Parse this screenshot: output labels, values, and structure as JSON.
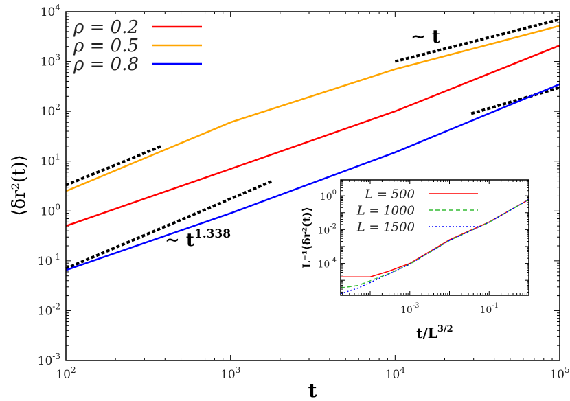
{
  "chart_data": [
    {
      "type": "line",
      "xscale": "log",
      "yscale": "log",
      "xlim": [
        100,
        100000
      ],
      "ylim": [
        0.001,
        10000
      ],
      "xlabel": "t",
      "ylabel": "⟨δr²(t)⟩",
      "xticks": [
        {
          "base": "10",
          "exp": "2",
          "v": 100
        },
        {
          "base": "10",
          "exp": "3",
          "v": 1000
        },
        {
          "base": "10",
          "exp": "4",
          "v": 10000
        },
        {
          "base": "10",
          "exp": "5",
          "v": 100000
        }
      ],
      "yticks": [
        {
          "base": "10",
          "exp": "-3",
          "v": 0.001
        },
        {
          "base": "10",
          "exp": "-2",
          "v": 0.01
        },
        {
          "base": "10",
          "exp": "-1",
          "v": 0.1
        },
        {
          "base": "10",
          "exp": "0",
          "v": 1
        },
        {
          "base": "10",
          "exp": "1",
          "v": 10
        },
        {
          "base": "10",
          "exp": "2",
          "v": 100
        },
        {
          "base": "10",
          "exp": "3",
          "v": 1000
        },
        {
          "base": "10",
          "exp": "4",
          "v": 10000
        }
      ],
      "legend_position": "top-left",
      "series": [
        {
          "name": "ρ = 0.2",
          "color": "#ff0000",
          "x": [
            100,
            1000,
            10000,
            100000
          ],
          "y": [
            0.5,
            7,
            100,
            2100
          ]
        },
        {
          "name": "ρ = 0.5",
          "color": "#ffa500",
          "x": [
            100,
            1000,
            10000,
            100000
          ],
          "y": [
            2.5,
            60,
            700,
            5200
          ]
        },
        {
          "name": "ρ = 0.8",
          "color": "#0000ff",
          "x": [
            100,
            1000,
            10000,
            100000
          ],
          "y": [
            0.065,
            0.9,
            15,
            350
          ]
        }
      ],
      "reference_lines": [
        {
          "style": "dashed",
          "color": "#000000",
          "x": [
            100,
            1800
          ],
          "y": [
            0.07,
            4
          ]
        },
        {
          "style": "dashed",
          "color": "#000000",
          "x": [
            100,
            380
          ],
          "y": [
            3.3,
            20
          ]
        },
        {
          "style": "dashed",
          "color": "#000000",
          "x": [
            10000,
            100000
          ],
          "y": [
            1000,
            7000
          ]
        },
        {
          "style": "dashed",
          "color": "#000000",
          "x": [
            29000,
            100000
          ],
          "y": [
            90,
            300
          ]
        }
      ],
      "annotations": [
        {
          "text": "∼ t",
          "sup": ""
        },
        {
          "text": "∼ t",
          "sup": "1.338"
        }
      ]
    },
    {
      "type": "line",
      "inset": true,
      "xscale": "log",
      "yscale": "log",
      "xlim": [
        1.8e-05,
        1
      ],
      "ylim": [
        1.3e-06,
        8.7
      ],
      "xlabel": "t/L",
      "xlabel_sup": "3/2",
      "ylabel": "L⁻¹⟨δr²(t)⟩",
      "xticks": [
        {
          "base": "10",
          "exp": "-3",
          "v": 0.001
        },
        {
          "base": "10",
          "exp": "-1",
          "v": 0.1
        }
      ],
      "yticks": [
        {
          "base": "10",
          "exp": "-4",
          "v": 0.0001
        },
        {
          "base": "10",
          "exp": "-2",
          "v": 0.01
        },
        {
          "base": "10",
          "exp": "0",
          "v": 1
        }
      ],
      "legend_position": "top-left",
      "series": [
        {
          "name": "L = 500",
          "color": "#ff0000",
          "style": "solid",
          "x": [
            1.8e-05,
            0.0001,
            0.0003,
            0.001,
            0.01,
            0.1,
            1
          ],
          "y": [
            1.6e-05,
            1.6e-05,
            3.5e-05,
            0.0001,
            0.0025,
            0.028,
            0.6
          ]
        },
        {
          "name": "L = 1000",
          "color": "#33bb33",
          "style": "dashed",
          "x": [
            1.8e-05,
            5e-05,
            0.0003,
            0.001,
            0.01,
            0.1,
            1
          ],
          "y": [
            3.5e-06,
            5e-06,
            2.5e-05,
            9e-05,
            0.0023,
            0.027,
            0.6
          ]
        },
        {
          "name": "L = 1500",
          "color": "#0000ff",
          "style": "dotted",
          "x": [
            1.8e-05,
            5e-05,
            0.0003,
            0.001,
            0.01,
            0.1,
            1
          ],
          "y": [
            1.6e-06,
            3.5e-06,
            2.4e-05,
            9e-05,
            0.0023,
            0.027,
            0.6
          ]
        }
      ]
    }
  ]
}
